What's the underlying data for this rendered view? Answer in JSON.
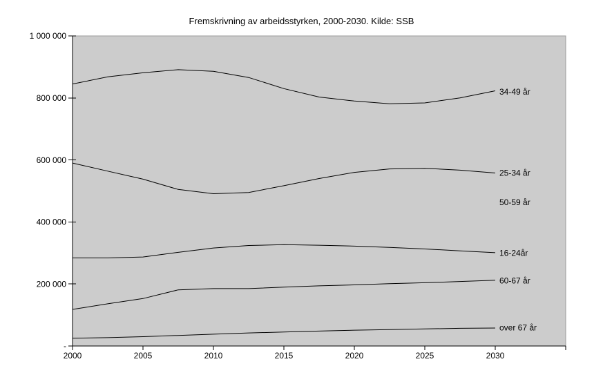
{
  "chart_data": {
    "type": "line",
    "title": "Fremskrivning av arbeidsstyrken, 2000-2030. Kilde: SSB",
    "xlabel": "",
    "ylabel": "",
    "xlim": [
      2000,
      2035
    ],
    "ylim": [
      0,
      1000000
    ],
    "grid": false,
    "plot_bg_color": "#cccccc",
    "plot_border_color": "#9b9b9b",
    "axis_color": "#000000",
    "line_color": "#000000",
    "x_ticks": [
      {
        "label": "2000",
        "value": 2000
      },
      {
        "label": "2005",
        "value": 2005
      },
      {
        "label": "2010",
        "value": 2010
      },
      {
        "label": "2015",
        "value": 2015
      },
      {
        "label": "2020",
        "value": 2020
      },
      {
        "label": "2025",
        "value": 2025
      },
      {
        "label": "2030",
        "value": 2030
      },
      {
        "label": "",
        "value": 2035
      }
    ],
    "y_ticks": [
      {
        "label": "1 000 000",
        "value": 1000000
      },
      {
        "label": "800 000",
        "value": 800000
      },
      {
        "label": "600 000",
        "value": 600000
      },
      {
        "label": "400 000",
        "value": 400000
      },
      {
        "label": "200 000",
        "value": 200000
      },
      {
        "label": "-",
        "value": 0
      }
    ],
    "x": [
      2000,
      2002.5,
      2005,
      2007.5,
      2010,
      2012.5,
      2015,
      2017.5,
      2020,
      2022.5,
      2025,
      2027.5,
      2030
    ],
    "series": [
      {
        "id": "34-49",
        "name": "34-49 år",
        "values": [
          845000,
          868000,
          881000,
          891000,
          886000,
          866000,
          830000,
          803000,
          790000,
          781000,
          784000,
          800000,
          823000
        ]
      },
      {
        "id": "25-34",
        "name": "25-34 år",
        "values": [
          590000,
          564000,
          538000,
          505000,
          491000,
          495000,
          517000,
          540000,
          560000,
          571000,
          573000,
          567000,
          558000
        ]
      },
      {
        "id": "16-24",
        "name": "16-24år",
        "values": [
          284000,
          284000,
          287000,
          302000,
          316000,
          324000,
          327000,
          325000,
          322000,
          318000,
          313000,
          307000,
          301000
        ]
      },
      {
        "id": "60-67",
        "name": "60-67 år",
        "values": [
          118000,
          136000,
          153000,
          181000,
          185000,
          185000,
          190000,
          194000,
          197000,
          201000,
          204000,
          208000,
          212000
        ]
      },
      {
        "id": "over-67",
        "name": "over 67 år",
        "values": [
          25000,
          27000,
          30000,
          34000,
          38000,
          42000,
          45000,
          48000,
          51000,
          53000,
          55000,
          57000,
          58000
        ]
      }
    ],
    "series_labels": [
      {
        "text": "34-49 år",
        "at_value": 820000
      },
      {
        "text": "25-34 år",
        "at_value": 558000
      },
      {
        "text": "50-59 år",
        "at_value": 464000
      },
      {
        "text": "16-24år",
        "at_value": 300000
      },
      {
        "text": "60-67 år",
        "at_value": 211000
      },
      {
        "text": "over 67 år",
        "at_value": 60000
      }
    ]
  }
}
